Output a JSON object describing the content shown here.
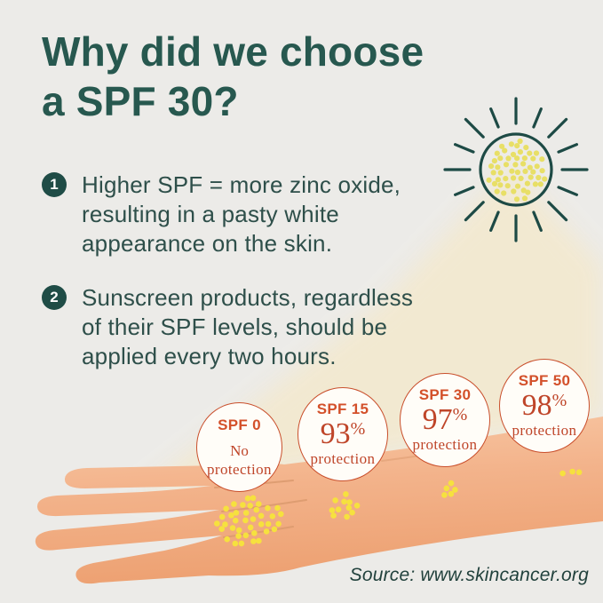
{
  "title": {
    "line1": "Why did we choose",
    "line2": "a SPF 30?"
  },
  "points": [
    {
      "number": "1",
      "lines": [
        "Higher SPF = more zinc oxide,",
        "resulting in a pasty white",
        "appearance on the skin."
      ]
    },
    {
      "number": "2",
      "lines": [
        "Sunscreen products, regardless",
        "of their SPF levels, should be",
        "applied every two hours."
      ]
    }
  ],
  "spf_circles": [
    {
      "label": "SPF 0",
      "mid": "No",
      "sign": "",
      "bottom": "protection"
    },
    {
      "label": "SPF 15",
      "mid": "93",
      "sign": "%",
      "bottom": "protection"
    },
    {
      "label": "SPF 30",
      "mid": "97",
      "sign": "%",
      "bottom": "protection"
    },
    {
      "label": "SPF 50",
      "mid": "98",
      "sign": "%",
      "bottom": "protection"
    }
  ],
  "source": "Source: www.skincancer.org",
  "chart_data": {
    "type": "table",
    "title": "UV protection by SPF level",
    "categories": [
      "SPF 0",
      "SPF 15",
      "SPF 30",
      "SPF 50"
    ],
    "values": [
      0,
      93,
      97,
      98
    ],
    "value_labels": [
      "No protection",
      "93% protection",
      "97% protection",
      "98% protection"
    ],
    "unit": "% protection"
  },
  "colors": {
    "background": "#ecebe8",
    "teal": "#27584f",
    "teal_dark": "#1f4c46",
    "orange": "#c94f2c",
    "beam": "#f3e9d0",
    "skin": "#f1ab80",
    "uv_yellow": "#f6e13e"
  }
}
